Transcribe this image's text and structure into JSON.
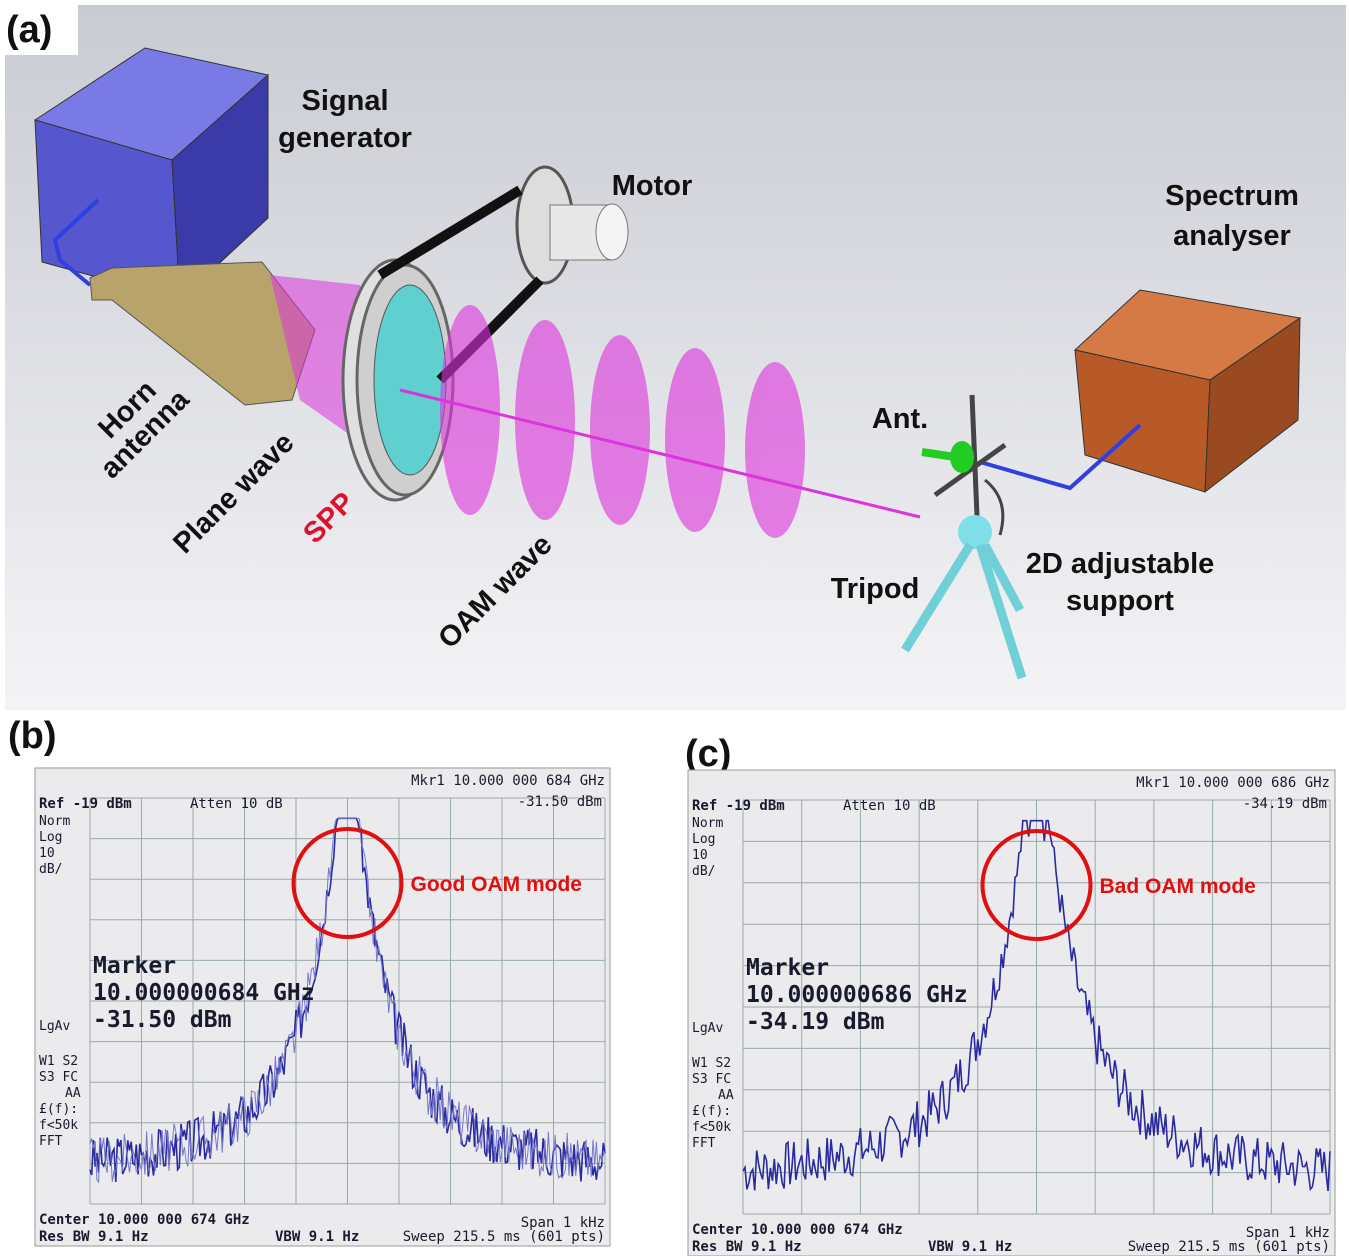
{
  "diagram": {
    "panel_label": "(a)",
    "labels": {
      "signal_generator": [
        "Signal",
        "generator"
      ],
      "motor": "Motor",
      "spectrum_analyser": [
        "Spectrum",
        "analyser"
      ],
      "horn_antenna": [
        "Horn",
        "antenna"
      ],
      "plane_wave": "Plane wave",
      "spp": "SPP",
      "oam_wave": "OAM wave",
      "ant": "Ant.",
      "tripod": "Tripod",
      "support": [
        "2D adjustable",
        "support"
      ]
    }
  },
  "panels": [
    {
      "panel_label": "(b)",
      "annotation": "Good OAM mode",
      "screen": {
        "ref": "Ref -19 dBm",
        "atten": "Atten 10 dB",
        "mkr": "Mkr1 10.000 000 684 GHz",
        "mkr_level": "-31.50 dBm",
        "side": [
          "Norm",
          "Log",
          "10",
          "dB/"
        ],
        "marker": [
          "Marker",
          "10.000000684 GHz",
          "-31.50 dBm"
        ],
        "lgav": "LgAv",
        "side2": [
          "W1  S2",
          "S3  FC",
          "AA",
          "£(f):",
          "f<50k",
          "FFT"
        ],
        "center": "Center 10.000 000 674 GHz",
        "span": "Span 1 kHz",
        "res_bw": "Res BW 9.1 Hz",
        "vbw": "VBW 9.1 Hz",
        "sweep": "Sweep 215.5 ms (601 pts)"
      }
    },
    {
      "panel_label": "(c)",
      "annotation": "Bad OAM mode",
      "screen": {
        "ref": "Ref -19 dBm",
        "atten": "Atten 10 dB",
        "mkr": "Mkr1 10.000 000 686 GHz",
        "mkr_level": "-34.19 dBm",
        "side": [
          "Norm",
          "Log",
          "10",
          "dB/"
        ],
        "marker": [
          "Marker",
          "10.000000686 GHz",
          "-34.19 dBm"
        ],
        "lgav": "LgAv",
        "side2": [
          "W1  S2",
          "S3  FC",
          "AA",
          "£(f):",
          "f<50k",
          "FFT"
        ],
        "center": "Center 10.000 000 674 GHz",
        "span": "Span 1 kHz",
        "res_bw": "Res BW 9.1 Hz",
        "vbw": "VBW 9.1 Hz",
        "sweep": "Sweep 215.5 ms (601 pts)"
      }
    }
  ]
}
